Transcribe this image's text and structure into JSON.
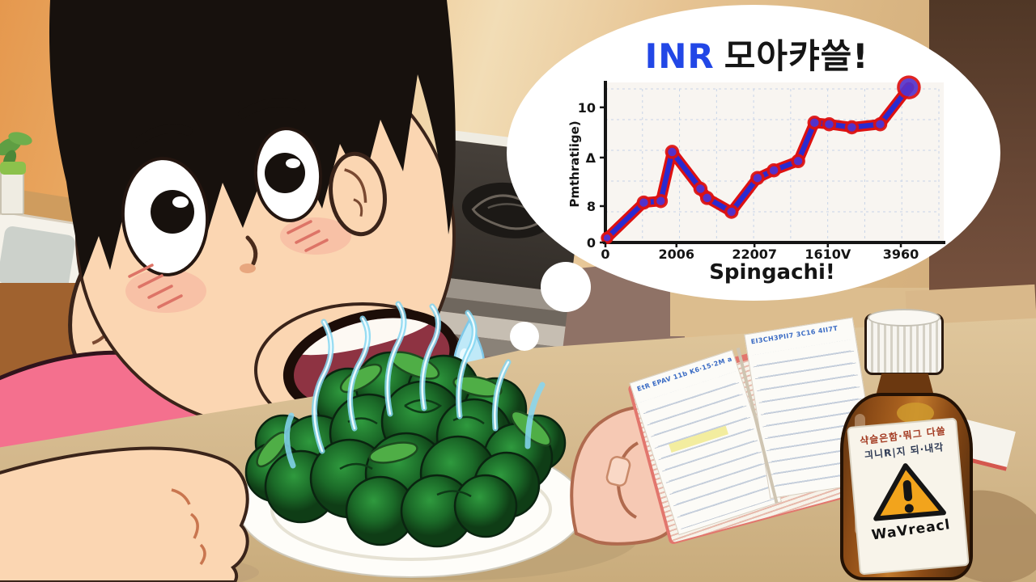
{
  "scene": {
    "setting": "cartoon kitchen",
    "boy": {
      "expression": "shocked, mouth open",
      "hair_color": "#17110d",
      "skin_color": "#fbd6b2",
      "shirt_color": "#f4708e",
      "sweat_drop_color": "#bfe9f8"
    },
    "food": {
      "item": "plate of glowing spinach",
      "plate_color": "#fefdf9",
      "spinach_color": "#1f7a2e",
      "aura_color": "#8fd9f2"
    },
    "table_color": "#d6bb90",
    "thought_bubble_color": "#ffffff"
  },
  "chart_data": {
    "type": "line",
    "title_primary": "INR",
    "title_secondary": "모아캬쓸!",
    "title_primary_color": "#2247e6",
    "xlabel": "Spingachi!",
    "ylabel": "Pmthratiige)",
    "x_ticks": [
      "0",
      "2006",
      "22007",
      "1610V",
      "3960"
    ],
    "y_ticks": [
      "0",
      "8",
      "Δ",
      "10"
    ],
    "ylim": [
      0,
      10.5
    ],
    "grid": true,
    "legend": "none",
    "line_outer_color": "#dd1111",
    "line_inner_color": "#2a2ad0",
    "dot_fill_color": "#5533cc",
    "points": [
      {
        "x": 0.005,
        "v": 0.3,
        "r": 6
      },
      {
        "x": 0.115,
        "v": 2.6
      },
      {
        "x": 0.166,
        "v": 2.7
      },
      {
        "x": 0.2,
        "v": 5.9
      },
      {
        "x": 0.285,
        "v": 3.5
      },
      {
        "x": 0.305,
        "v": 2.9
      },
      {
        "x": 0.378,
        "v": 2.0
      },
      {
        "x": 0.456,
        "v": 4.2
      },
      {
        "x": 0.505,
        "v": 4.7
      },
      {
        "x": 0.578,
        "v": 5.3
      },
      {
        "x": 0.627,
        "v": 7.8
      },
      {
        "x": 0.671,
        "v": 7.7
      },
      {
        "x": 0.739,
        "v": 7.5
      },
      {
        "x": 0.824,
        "v": 7.7
      },
      {
        "x": 0.91,
        "v": 10.1,
        "r": 13
      }
    ]
  },
  "notebook": {
    "left_header": "EtR EPAV 11b K6·15·2M a",
    "right_header": "EI3CH3PII7 3C16 4II7T",
    "page_color": "#fcfbf7",
    "edge_color": "#e2766d"
  },
  "bottle": {
    "label_line1": "샥슬은함·뭐그 다쓸",
    "label_line2": "긔니R|지 되·내각",
    "warning_text": "WaVreacl",
    "warning_icon": "warning-triangle-icon",
    "glass_color": "#8a4a16",
    "cap_color": "#f7f5f0",
    "triangle_color": "#f2a41c"
  }
}
